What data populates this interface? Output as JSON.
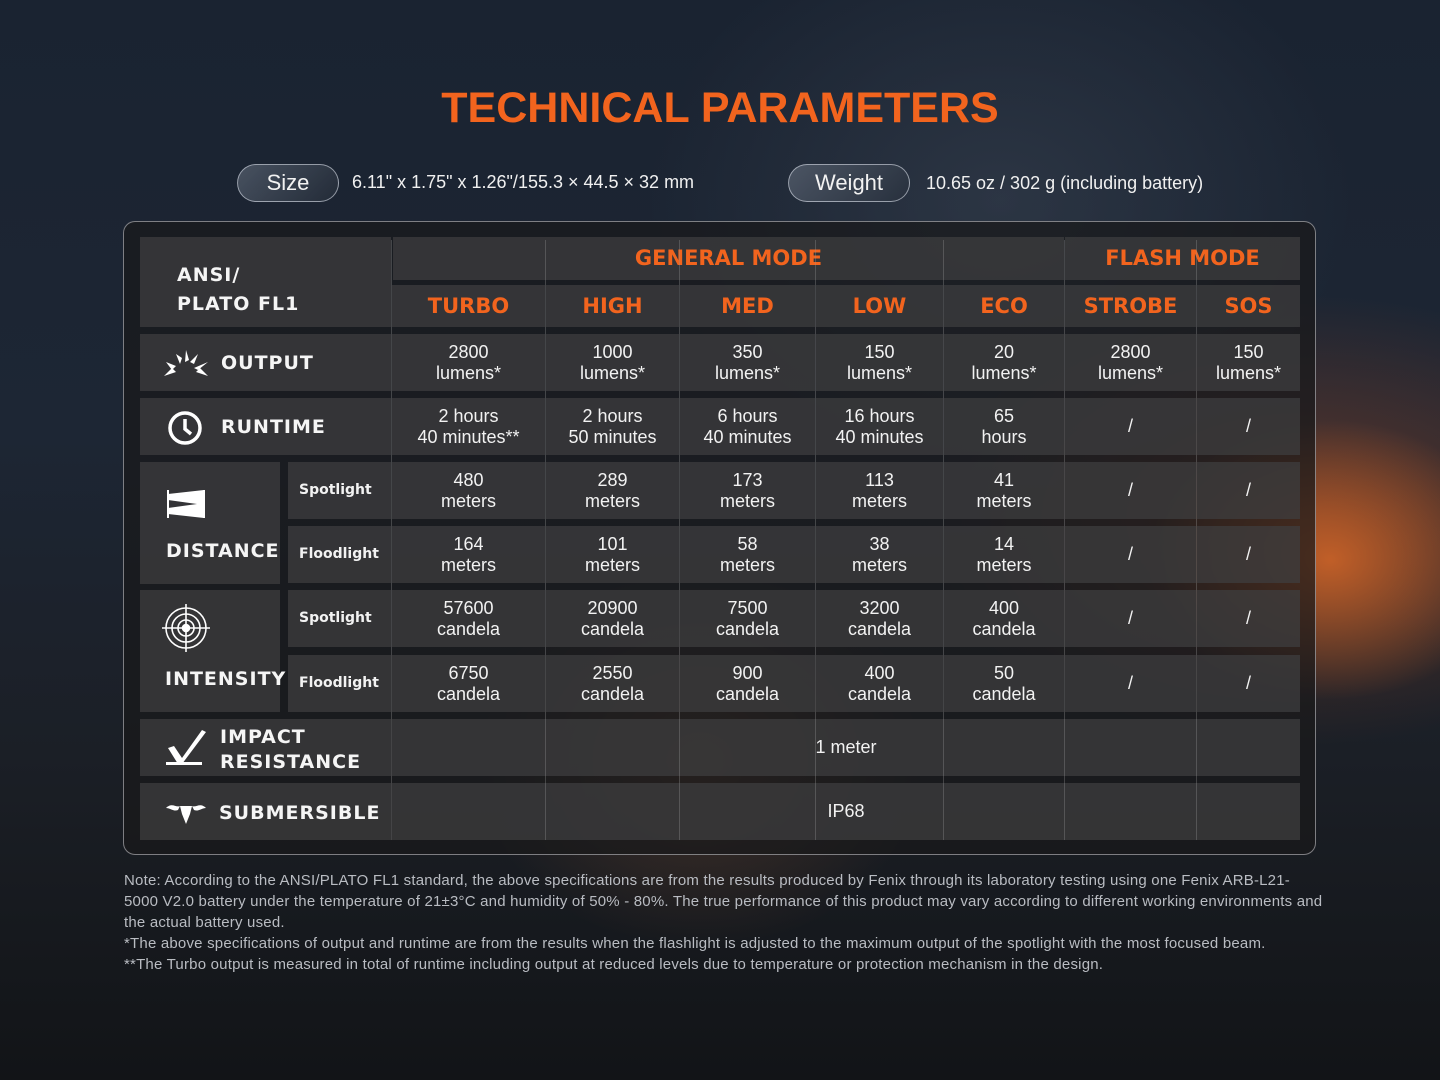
{
  "title": "TECHNICAL PARAMETERS",
  "size": {
    "label": "Size",
    "value": "6.11\" x 1.75\" x 1.26\"/155.3 × 44.5 × 32 mm"
  },
  "weight": {
    "label": "Weight",
    "value": "10.65 oz / 302 g (including battery)"
  },
  "table": {
    "corner": [
      "ANSI/",
      "PLATO FL1"
    ],
    "general_mode": "GENERAL MODE",
    "flash_mode": "FLASH MODE",
    "modes": [
      "TURBO",
      "HIGH",
      "MED",
      "LOW",
      "ECO",
      "STROBE",
      "SOS"
    ],
    "rows": [
      {
        "label": "OUTPUT",
        "icon": "light-burst-icon",
        "values": [
          [
            "2800",
            "lumens*"
          ],
          [
            "1000",
            "lumens*"
          ],
          [
            "350",
            "lumens*"
          ],
          [
            "150",
            "lumens*"
          ],
          [
            "20",
            "lumens*"
          ],
          [
            "2800",
            "lumens*"
          ],
          [
            "150",
            "lumens*"
          ]
        ]
      },
      {
        "label": "RUNTIME",
        "icon": "clock-icon",
        "values": [
          [
            "2 hours",
            "40 minutes**"
          ],
          [
            "2 hours",
            "50 minutes"
          ],
          [
            "6 hours",
            "40 minutes"
          ],
          [
            "16 hours",
            "40 minutes"
          ],
          [
            "65",
            "hours"
          ],
          [
            "/"
          ],
          [
            "/"
          ]
        ]
      },
      {
        "label": "DISTANCE",
        "icon": "beam-distance-icon",
        "sub": "Spotlight",
        "values": [
          [
            "480",
            "meters"
          ],
          [
            "289",
            "meters"
          ],
          [
            "173",
            "meters"
          ],
          [
            "113",
            "meters"
          ],
          [
            "41",
            "meters"
          ],
          [
            "/"
          ],
          [
            "/"
          ]
        ]
      },
      {
        "label": "DISTANCE",
        "sub": "Floodlight",
        "values": [
          [
            "164",
            "meters"
          ],
          [
            "101",
            "meters"
          ],
          [
            "58",
            "meters"
          ],
          [
            "38",
            "meters"
          ],
          [
            "14",
            "meters"
          ],
          [
            "/"
          ],
          [
            "/"
          ]
        ]
      },
      {
        "label": "INTENSITY",
        "icon": "target-icon",
        "sub": "Spotlight",
        "values": [
          [
            "57600",
            "candela"
          ],
          [
            "20900",
            "candela"
          ],
          [
            "7500",
            "candela"
          ],
          [
            "3200",
            "candela"
          ],
          [
            "400",
            "candela"
          ],
          [
            "/"
          ],
          [
            "/"
          ]
        ]
      },
      {
        "label": "INTENSITY",
        "sub": "Floodlight",
        "values": [
          [
            "6750",
            "candela"
          ],
          [
            "2550",
            "candela"
          ],
          [
            "900",
            "candela"
          ],
          [
            "400",
            "candela"
          ],
          [
            "50",
            "candela"
          ],
          [
            "/"
          ],
          [
            "/"
          ]
        ]
      }
    ],
    "impact": {
      "label": [
        "IMPACT",
        "RESISTANCE"
      ],
      "icon": "impact-icon",
      "value": "1 meter"
    },
    "submersible": {
      "label": "SUBMERSIBLE",
      "icon": "water-drop-icon",
      "value": "IP68"
    }
  },
  "notes": [
    "Note:  According to the ANSI/PLATO FL1 standard, the above specifications are from the results produced by Fenix through its laboratory testing using one Fenix ARB-L21-5000 V2.0 battery under the temperature of 21±3°C and humidity of 50% - 80%. The true performance of this product may vary according to different working environments and the actual battery used.",
    "*The above specifications of output and runtime are from the results when the flashlight is adjusted to the maximum output of the spotlight with the most focused beam.",
    "**The Turbo output is measured in total of runtime including output at reduced levels due to temperature or protection mechanism in the design."
  ],
  "colors": {
    "accent": "#f2641e"
  }
}
